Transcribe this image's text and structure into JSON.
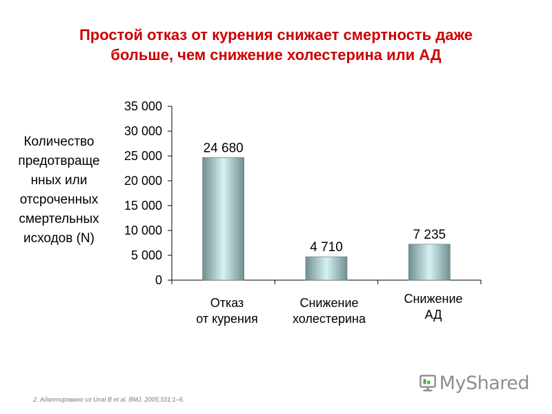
{
  "title_lines": [
    "Простой отказ от курения снижает смертность даже",
    "больше, чем снижение холестерина или АД"
  ],
  "ylabel_lines": [
    "Количество",
    "предотвраще",
    "нных или",
    "отсроченных",
    "смертельных",
    "исходов (N)"
  ],
  "categories": [
    [
      "Отказ",
      "от курения"
    ],
    [
      "Снижение",
      "холестерина"
    ],
    [
      "Снижение",
      "АД"
    ]
  ],
  "footnote": "2. Адаптировано из Unal B et al. BMJ. 2005;331:1–6.",
  "logo": {
    "text": "MyShared",
    "icon": "myshared-logo-icon"
  },
  "colors": {
    "title": "#cc0000",
    "bar_dark": "#6f8f90",
    "bar_light": "#d6f1f1",
    "axis": "#000000"
  },
  "chart_data": {
    "type": "bar",
    "categories": [
      "Отказ от курения",
      "Снижение холестерина",
      "Снижение АД"
    ],
    "values": [
      24680,
      4710,
      7235
    ],
    "data_labels": [
      "24 680",
      "4 710",
      "7 235"
    ],
    "ylim": [
      0,
      35000
    ],
    "yticks": [
      {
        "value": 0,
        "label": "0"
      },
      {
        "value": 5000,
        "label": "5 000"
      },
      {
        "value": 10000,
        "label": "10 000"
      },
      {
        "value": 15000,
        "label": "15 000"
      },
      {
        "value": 20000,
        "label": "20 000"
      },
      {
        "value": 25000,
        "label": "25 000"
      },
      {
        "value": 30000,
        "label": "30 000"
      },
      {
        "value": 35000,
        "label": "35 000"
      }
    ],
    "grid": false,
    "legend": "none"
  }
}
